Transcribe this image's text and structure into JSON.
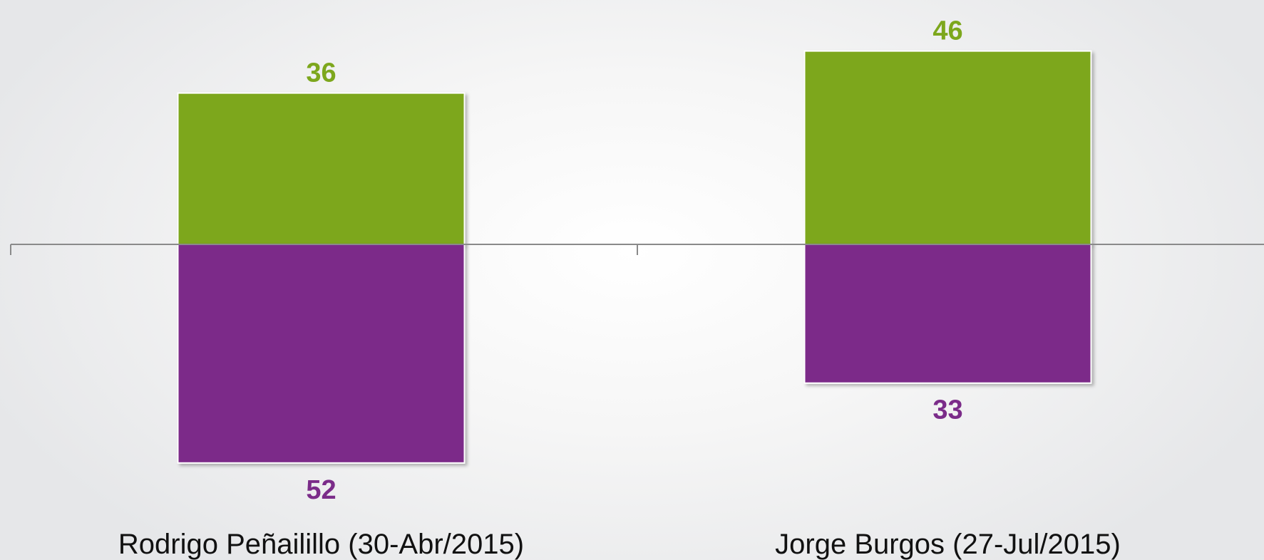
{
  "chart_data": {
    "type": "bar",
    "categories": [
      "Rodrigo Peñailillo (30-Abr/2015)",
      "Jorge Burgos (27-Jul/2015)"
    ],
    "series": [
      {
        "values": [
          36,
          46
        ],
        "color": "#7da71d",
        "direction": "up"
      },
      {
        "values": [
          52,
          33
        ],
        "color": "#7b2c89",
        "direction": "down"
      }
    ],
    "title": "",
    "xlabel": "",
    "ylabel": "",
    "grid": false,
    "legend": "none"
  }
}
